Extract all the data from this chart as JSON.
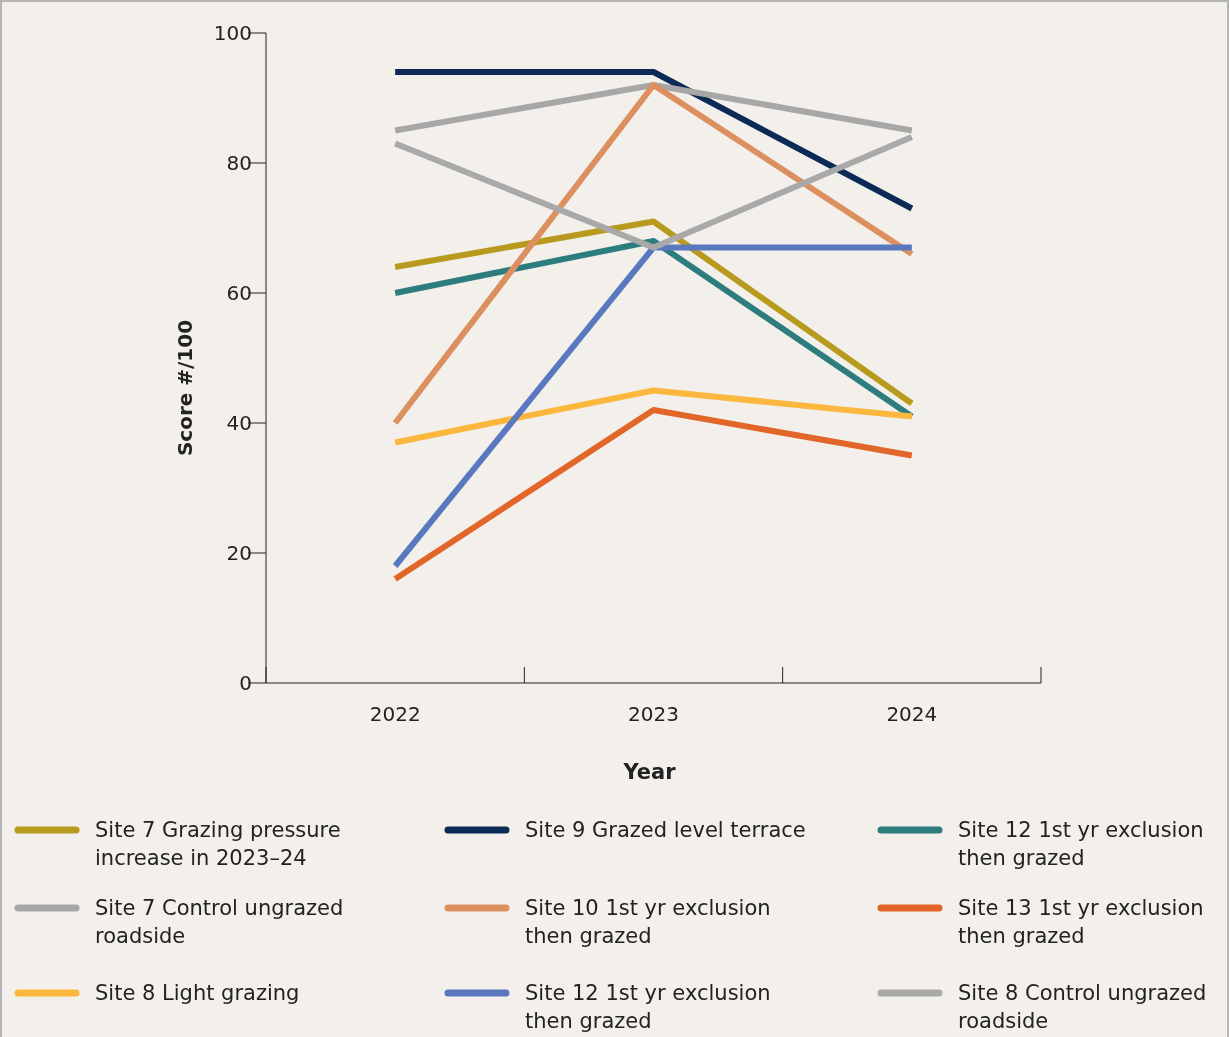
{
  "chart_data": {
    "type": "line",
    "xlabel": "Year",
    "ylabel": "Score #/100",
    "categories": [
      "2022",
      "2023",
      "2024"
    ],
    "ylim": [
      0,
      100
    ],
    "yticks": [
      0,
      20,
      40,
      60,
      80,
      100
    ],
    "grid": false,
    "legend": "bottom",
    "marker": "none",
    "line_style": "solid",
    "series": [
      {
        "name": "Site 7 Grazing pressure increase in 2023–24",
        "color": "#b89a1e",
        "values": [
          64,
          71,
          43
        ]
      },
      {
        "name": "Site 9 Grazed level terrace",
        "color": "#0b2a55",
        "values": [
          94,
          94,
          73
        ]
      },
      {
        "name": "Site 12 1st yr exclusion then grazed",
        "color": "#2e7d7e",
        "values": [
          60,
          68,
          41
        ]
      },
      {
        "name": "Site 7 Control ungrazed roadside",
        "color": "#a7a7a7",
        "values": [
          85,
          92,
          85
        ]
      },
      {
        "name": "Site 10 1st yr exclusion then grazed",
        "color": "#dc9060",
        "values": [
          40,
          92,
          66
        ]
      },
      {
        "name": "Site 13 1st yr exclusion then grazed",
        "color": "#e2652a",
        "values": [
          16,
          42,
          35
        ]
      },
      {
        "name": "Site 8 Light grazing",
        "color": "#fbb73e",
        "values": [
          37,
          45,
          41
        ]
      },
      {
        "name": "Site 12 1st yr exclusion then grazed",
        "color": "#5a78c0",
        "values": [
          18,
          67,
          67
        ]
      },
      {
        "name": "Site 8 Control ungrazed roadside",
        "color": "#a9a9a9",
        "values": [
          83,
          67,
          84
        ]
      }
    ]
  }
}
